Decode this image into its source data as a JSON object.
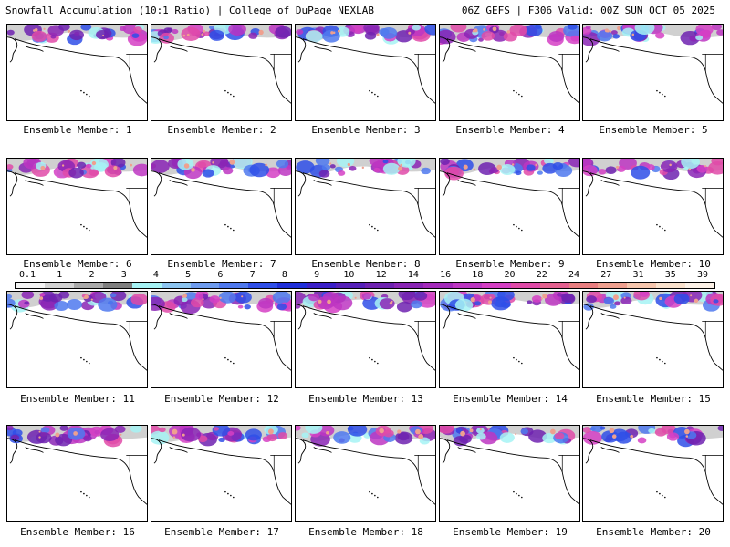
{
  "header": {
    "title_left": "Snowfall Accumulation (10:1 Ratio) | College of DuPage NEXLAB",
    "title_right": "06Z GEFS | F306 Valid: 00Z SUN OCT 05 2025"
  },
  "panels": [
    {
      "caption": "Ensemble Member: 1"
    },
    {
      "caption": "Ensemble Member: 2"
    },
    {
      "caption": "Ensemble Member: 3"
    },
    {
      "caption": "Ensemble Member: 4"
    },
    {
      "caption": "Ensemble Member: 5"
    },
    {
      "caption": "Ensemble Member: 6"
    },
    {
      "caption": "Ensemble Member: 7"
    },
    {
      "caption": "Ensemble Member: 8"
    },
    {
      "caption": "Ensemble Member: 9"
    },
    {
      "caption": "Ensemble Member: 10"
    },
    {
      "caption": "Ensemble Member: 11"
    },
    {
      "caption": "Ensemble Member: 12"
    },
    {
      "caption": "Ensemble Member: 13"
    },
    {
      "caption": "Ensemble Member: 14"
    },
    {
      "caption": "Ensemble Member: 15"
    },
    {
      "caption": "Ensemble Member: 16"
    },
    {
      "caption": "Ensemble Member: 17"
    },
    {
      "caption": "Ensemble Member: 18"
    },
    {
      "caption": "Ensemble Member: 19"
    },
    {
      "caption": "Ensemble Member: 20"
    }
  ],
  "legend": {
    "ticks": [
      "0.1",
      "1",
      "2",
      "3",
      "4",
      "5",
      "6",
      "7",
      "8",
      "9",
      "10",
      "12",
      "14",
      "16",
      "18",
      "20",
      "22",
      "24",
      "27",
      "31",
      "35",
      "39"
    ],
    "colors": [
      "#f4f4f4",
      "#d2d2d2",
      "#a9a9a9",
      "#7f7f7f",
      "#a6f3f5",
      "#8cc4f0",
      "#6e9cef",
      "#4f79ee",
      "#2f4fe8",
      "#1f2fd9",
      "#3a1fc8",
      "#5520b8",
      "#6e22b0",
      "#8a25b5",
      "#a42abb",
      "#bd36c2",
      "#d53fc4",
      "#e04aa8",
      "#e3608f",
      "#e87e80",
      "#efa08f",
      "#f6c6ad",
      "#fae2cd",
      "#fdf2e8"
    ]
  }
}
